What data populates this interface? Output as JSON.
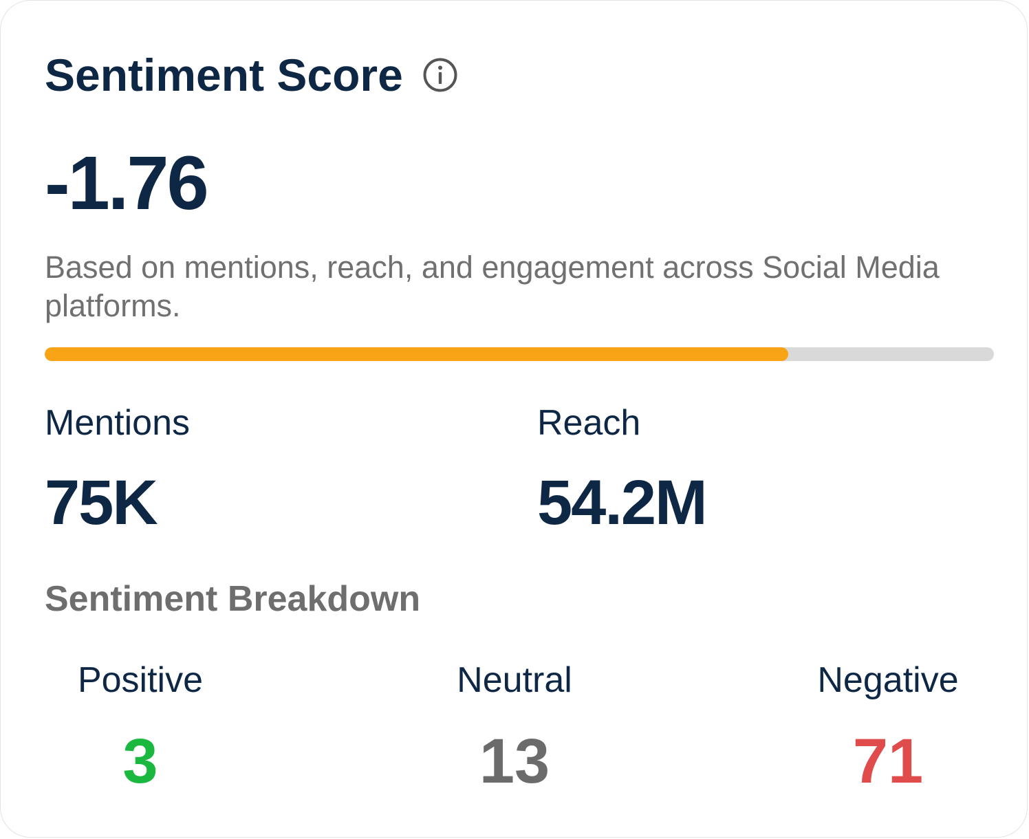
{
  "card": {
    "title": "Sentiment Score",
    "info_icon": "info-icon",
    "score": "-1.76",
    "description": "Based on mentions, reach, and engagement across Social Media platforms.",
    "progress": {
      "percent": 78.3,
      "fill_color": "#f8a416",
      "track_color": "#d9d9d9"
    },
    "metrics": {
      "mentions": {
        "label": "Mentions",
        "value": "75K"
      },
      "reach": {
        "label": "Reach",
        "value": "54.2M"
      }
    },
    "breakdown": {
      "title": "Sentiment Breakdown",
      "positive": {
        "label": "Positive",
        "value": "3",
        "color": "#1bb83f"
      },
      "neutral": {
        "label": "Neutral",
        "value": "13",
        "color": "#6b6b6b"
      },
      "negative": {
        "label": "Negative",
        "value": "71",
        "color": "#e04b4b"
      }
    }
  }
}
